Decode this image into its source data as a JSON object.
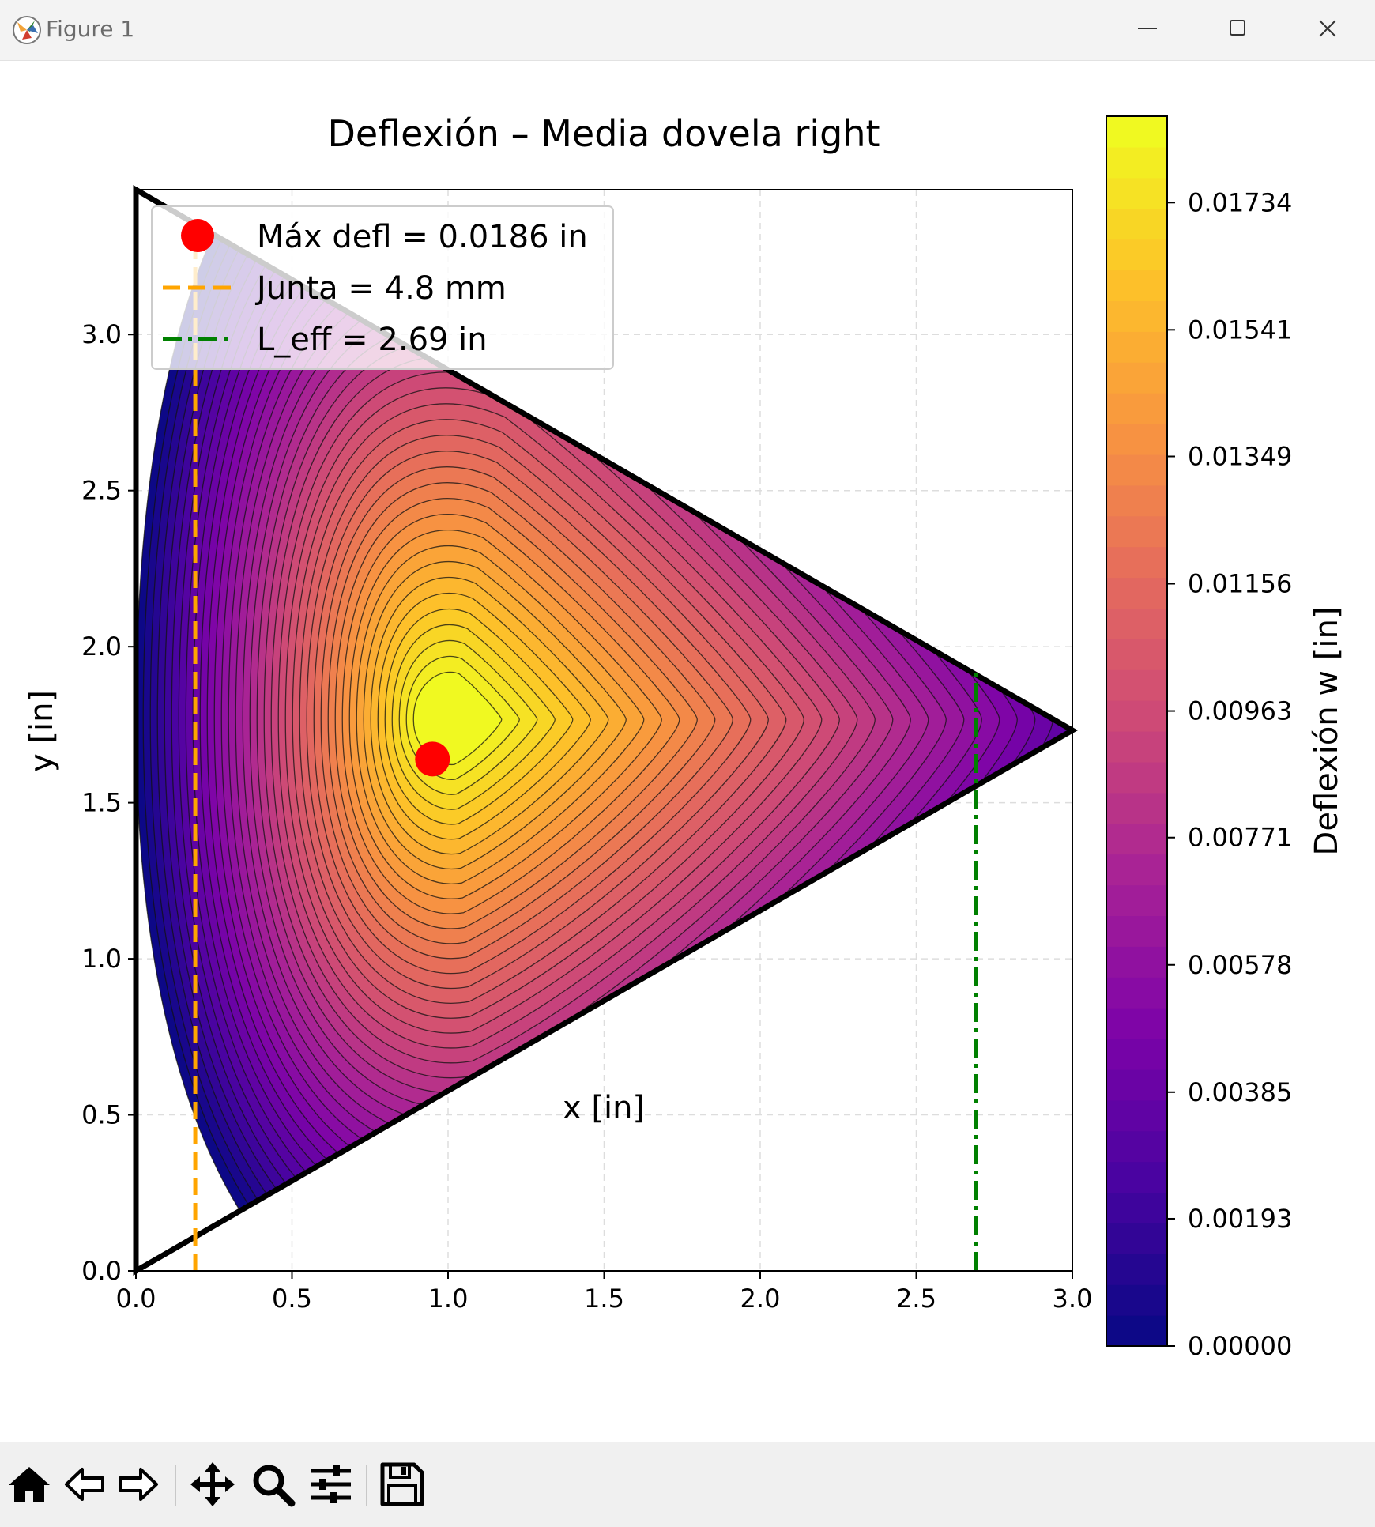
{
  "window": {
    "title": "Figure 1"
  },
  "toolbar": {
    "buttons": [
      "home-icon",
      "back-icon",
      "forward-icon",
      "pan-icon",
      "zoom-icon",
      "configure-subplots-icon",
      "save-icon"
    ]
  },
  "chart_data": {
    "type": "contour",
    "title": "Deflexión – Media dovela right",
    "xlabel": "x [in]",
    "ylabel": "y [in]",
    "xlim": [
      0.0,
      3.0
    ],
    "ylim": [
      0.0,
      3.464
    ],
    "xticks": [
      "0.0",
      "0.5",
      "1.0",
      "1.5",
      "2.0",
      "2.5",
      "3.0"
    ],
    "yticks": [
      "0.0",
      "0.5",
      "1.0",
      "1.5",
      "2.0",
      "2.5",
      "3.0"
    ],
    "grid": true,
    "domain_polygon": [
      [
        0.0,
        0.0
      ],
      [
        3.0,
        1.732
      ],
      [
        0.0,
        3.464
      ]
    ],
    "colormap": "plasma",
    "max_point": {
      "x": 0.95,
      "y": 1.64,
      "value": 0.0186
    },
    "junta_line": {
      "x": 0.19
    },
    "l_eff_line": {
      "x": 2.69,
      "y_top": 1.93
    },
    "legend": {
      "location": "upper left",
      "entries": [
        {
          "label": "Máx defl = 0.0186 in",
          "color": "#ff0000",
          "style": "marker"
        },
        {
          "label": "Junta = 4.8 mm",
          "color": "#ffa500",
          "style": "dashed"
        },
        {
          "label": "L_eff = 2.69 in",
          "color": "#008000",
          "style": "dashdot"
        }
      ]
    },
    "colorbar": {
      "label": "Deflexión w [in]",
      "range": [
        0.0,
        0.01865
      ],
      "ticks": [
        "0.01734",
        "0.01541",
        "0.01349",
        "0.01156",
        "0.00963",
        "0.00771",
        "0.00578",
        "0.00385",
        "0.00193",
        "0.00000"
      ],
      "tick_values": [
        0.01734,
        0.01541,
        0.01349,
        0.01156,
        0.00963,
        0.00771,
        0.00578,
        0.00385,
        0.00193,
        0.0
      ],
      "levels": 40
    }
  }
}
